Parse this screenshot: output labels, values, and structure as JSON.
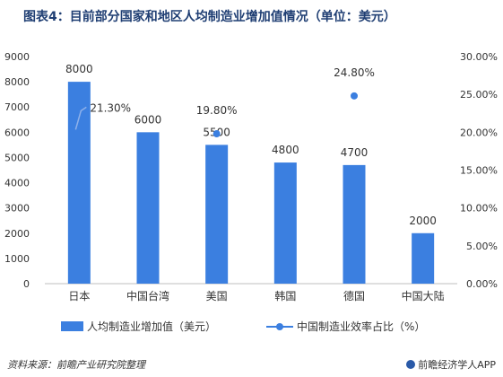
{
  "header": {
    "title": "图表4：目前部分国家和地区人均制造业增加值情况（单位：美元）"
  },
  "footer": {
    "source": "资料来源：前瞻产业研究院整理",
    "brand": "前瞻经济学人APP"
  },
  "colors": {
    "bar": "#3b7fe0",
    "line": "#3b7fe0",
    "dot": "#3b7fe0"
  },
  "chart_data": {
    "type": "bar",
    "title": "图表4：目前部分国家和地区人均制造业增加值情况（单位：美元）",
    "categories": [
      "日本",
      "中国台湾",
      "美国",
      "韩国",
      "德国",
      "中国大陆"
    ],
    "series": [
      {
        "name": "人均制造业增加值（美元）",
        "type": "bar",
        "axis": "left",
        "values": [
          8000,
          6000,
          5500,
          4800,
          4700,
          2000
        ],
        "labels": [
          "8000",
          "6000",
          "5500",
          "4800",
          "4700",
          "2000"
        ]
      },
      {
        "name": "中国制造业效率占比（%）",
        "type": "line",
        "axis": "right",
        "points": [
          {
            "category": "日本",
            "value": 21.3,
            "label": "21.30%"
          },
          {
            "category": "美国",
            "value": 19.8,
            "label": "19.80%"
          },
          {
            "category": "德国",
            "value": 24.8,
            "label": "24.80%"
          }
        ]
      }
    ],
    "yAxisLeft": {
      "min": 0,
      "max": 9000,
      "ticks": [
        "0",
        "1000",
        "2000",
        "3000",
        "4000",
        "5000",
        "6000",
        "7000",
        "8000",
        "9000"
      ]
    },
    "yAxisRight": {
      "min": 0,
      "max": 30,
      "ticks": [
        "0.00%",
        "5.00%",
        "10.00%",
        "15.00%",
        "20.00%",
        "25.00%",
        "30.00%"
      ]
    },
    "grid": false,
    "legend": "bottom"
  }
}
